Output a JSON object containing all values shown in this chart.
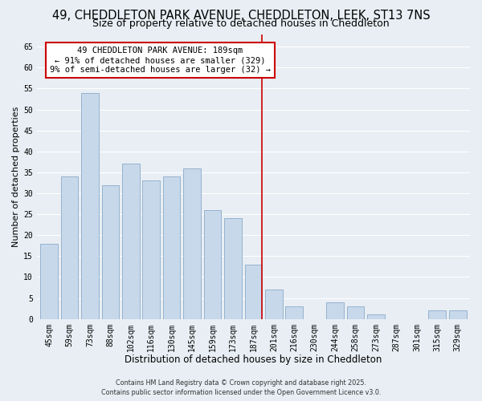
{
  "title": "49, CHEDDLETON PARK AVENUE, CHEDDLETON, LEEK, ST13 7NS",
  "subtitle": "Size of property relative to detached houses in Cheddleton",
  "xlabel": "Distribution of detached houses by size in Cheddleton",
  "ylabel": "Number of detached properties",
  "categories": [
    "45sqm",
    "59sqm",
    "73sqm",
    "88sqm",
    "102sqm",
    "116sqm",
    "130sqm",
    "145sqm",
    "159sqm",
    "173sqm",
    "187sqm",
    "201sqm",
    "216sqm",
    "230sqm",
    "244sqm",
    "258sqm",
    "273sqm",
    "287sqm",
    "301sqm",
    "315sqm",
    "329sqm"
  ],
  "values": [
    18,
    34,
    54,
    32,
    37,
    33,
    34,
    36,
    26,
    24,
    13,
    7,
    3,
    0,
    4,
    3,
    1,
    0,
    0,
    2,
    2
  ],
  "bar_color": "#c8d8eb",
  "bar_edge_color": "#8aaac8",
  "highlight_index": 10,
  "highlight_line_color": "#cc0000",
  "ylim": [
    0,
    68
  ],
  "yticks": [
    0,
    5,
    10,
    15,
    20,
    25,
    30,
    35,
    40,
    45,
    50,
    55,
    60,
    65
  ],
  "annotation_title": "49 CHEDDLETON PARK AVENUE: 189sqm",
  "annotation_line1": "← 91% of detached houses are smaller (329)",
  "annotation_line2": "9% of semi-detached houses are larger (32) →",
  "annotation_box_color": "#ffffff",
  "annotation_border_color": "#cc0000",
  "footer1": "Contains HM Land Registry data © Crown copyright and database right 2025.",
  "footer2": "Contains public sector information licensed under the Open Government Licence v3.0.",
  "background_color": "#e8eef4",
  "grid_color": "#ffffff",
  "title_fontsize": 10.5,
  "subtitle_fontsize": 9,
  "xlabel_fontsize": 8.5,
  "ylabel_fontsize": 8,
  "tick_fontsize": 7,
  "ann_fontsize": 7.5,
  "footer_fontsize": 5.8
}
